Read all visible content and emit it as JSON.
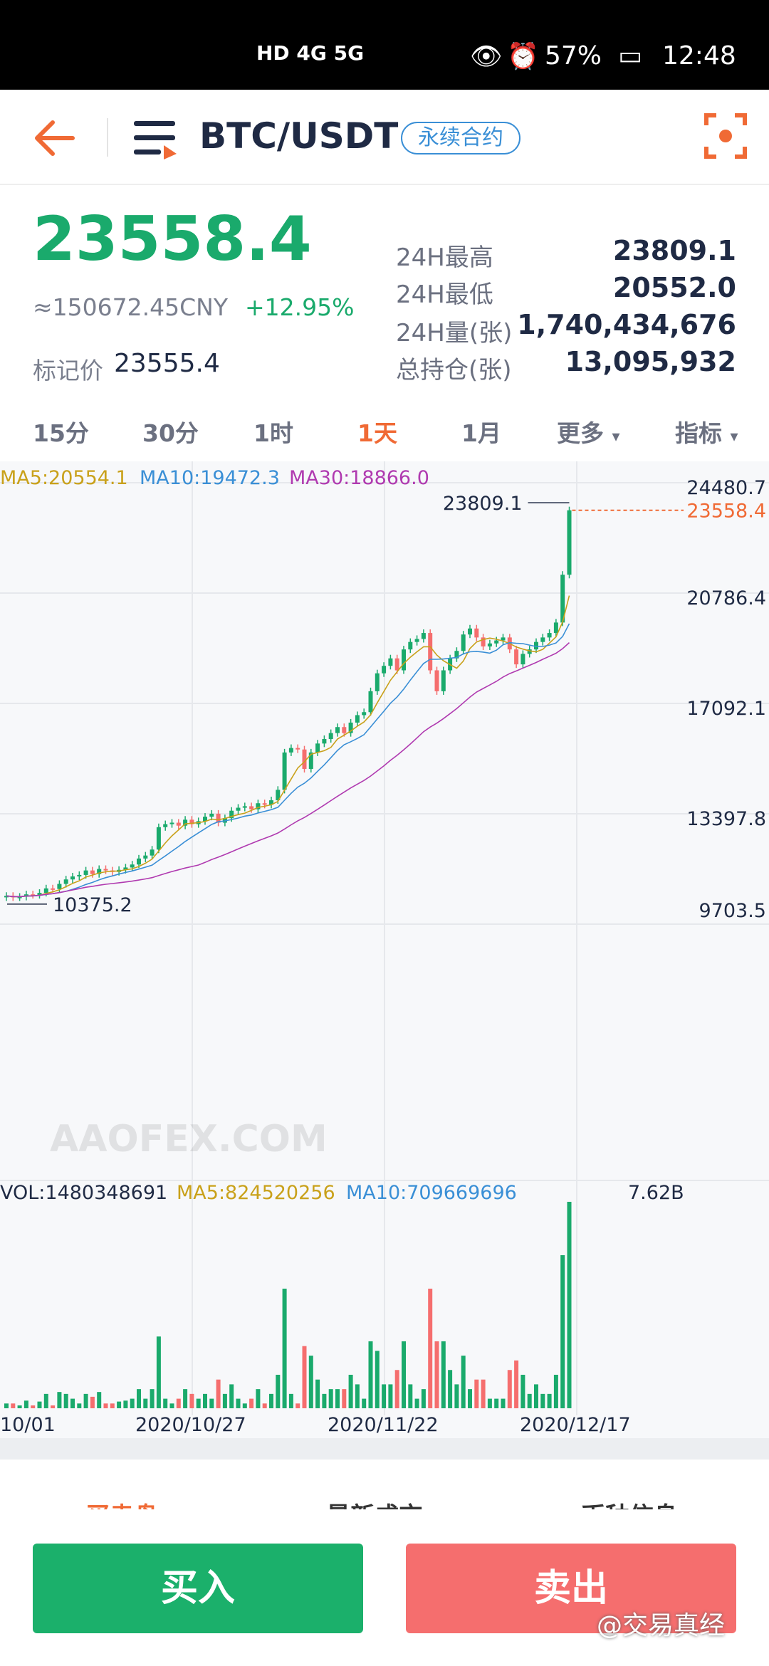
{
  "status_bar": {
    "battery": "57%",
    "time": "12:48",
    "network": "HD 4G 5G"
  },
  "header": {
    "pair": "BTC/USDT",
    "tag": "永续合约"
  },
  "ticker": {
    "price": "23558.4",
    "cny": "≈150672.45CNY",
    "change": "+12.95%",
    "mark_label": "标记价",
    "mark_price": "23555.4",
    "stats": [
      {
        "label": "24H最高",
        "value": "23809.1"
      },
      {
        "label": "24H最低",
        "value": "20552.0"
      },
      {
        "label": "24H量(张)",
        "value": "1,740,434,676"
      },
      {
        "label": "总持仓(张)",
        "value": "13,095,932"
      }
    ]
  },
  "intervals": [
    {
      "label": "15分",
      "active": false
    },
    {
      "label": "30分",
      "active": false
    },
    {
      "label": "1时",
      "active": false
    },
    {
      "label": "1天",
      "active": true
    },
    {
      "label": "1月",
      "active": false
    },
    {
      "label": "更多",
      "active": false
    },
    {
      "label": "指标",
      "active": false
    }
  ],
  "ma_legend": {
    "ma5": "MA5:20554.1",
    "ma10": "MA10:19472.3",
    "ma30": "MA30:18866.0"
  },
  "vol_legend": {
    "vol": "VOL:1480348691",
    "ma5": "MA5:824520256",
    "ma10": "MA10:709669696",
    "max": "7.62B"
  },
  "watermark": "AAOFEX.COM",
  "chart_data": {
    "type": "candlestick",
    "price_axis_ticks": [
      "24480.7",
      "20786.4",
      "17092.1",
      "13397.8",
      "9703.5"
    ],
    "ylim": [
      9703.5,
      24480.7
    ],
    "high_label": "23809.1",
    "low_label": "10375.2",
    "last_label": "23558.4",
    "dates": [
      "10/01",
      "2020/10/27",
      "2020/11/22",
      "2020/12/17"
    ],
    "candles_close": [
      10650,
      10600,
      10620,
      10700,
      10680,
      10750,
      10900,
      10880,
      11050,
      11200,
      11300,
      11350,
      11500,
      11380,
      11550,
      11500,
      11450,
      11520,
      11600,
      11700,
      11900,
      12000,
      12200,
      12950,
      13050,
      13100,
      13000,
      13200,
      13050,
      13150,
      13300,
      13400,
      13100,
      13250,
      13500,
      13600,
      13650,
      13550,
      13750,
      13700,
      13850,
      14200,
      15450,
      15600,
      15550,
      14900,
      15450,
      15750,
      15900,
      16100,
      16300,
      16100,
      16450,
      16700,
      16800,
      17500,
      18100,
      18350,
      18600,
      18200,
      18900,
      19150,
      19250,
      19450,
      18200,
      17500,
      18200,
      18600,
      18850,
      19400,
      19600,
      19300,
      19000,
      19100,
      19200,
      19300,
      18900,
      18400,
      18750,
      18900,
      19150,
      19300,
      19450,
      19800,
      21400,
      23558
    ],
    "volume_max": "7.62B"
  },
  "bottom_tabs": [
    "买卖盘",
    "最新成交",
    "币种信息"
  ],
  "actions": {
    "buy": "买入",
    "sell": "卖出"
  },
  "credit": "@交易真经"
}
